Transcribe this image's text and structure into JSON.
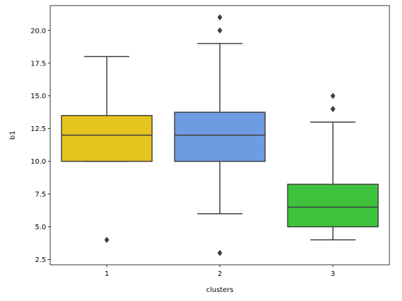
{
  "chart_data": {
    "type": "box",
    "xlabel": "clusters",
    "ylabel": "b1",
    "ylim": [
      2.1,
      21.9
    ],
    "yticks": [
      2.5,
      5.0,
      7.5,
      10.0,
      12.5,
      15.0,
      17.5,
      20.0
    ],
    "ytick_labels": [
      "2.5",
      "5.0",
      "7.5",
      "10.0",
      "12.5",
      "15.0",
      "17.5",
      "20.0"
    ],
    "categories": [
      "1",
      "2",
      "3"
    ],
    "grid": false,
    "boxes": [
      {
        "category": "1",
        "color": "#e5c41e",
        "whisker_low": 10.0,
        "q1": 10.0,
        "median": 12.0,
        "q3": 13.5,
        "whisker_high": 18.0,
        "outliers": [
          4.0
        ]
      },
      {
        "category": "2",
        "color": "#6f9be3",
        "whisker_low": 6.0,
        "q1": 10.0,
        "median": 12.0,
        "q3": 13.75,
        "whisker_high": 19.0,
        "outliers": [
          3.0,
          20.0,
          21.0
        ]
      },
      {
        "category": "3",
        "color": "#3ec23e",
        "whisker_low": 4.0,
        "q1": 5.0,
        "median": 6.5,
        "q3": 8.25,
        "whisker_high": 13.0,
        "outliers": [
          14.0,
          14.0,
          15.0
        ]
      }
    ],
    "line_color": "#3f3f3f"
  }
}
